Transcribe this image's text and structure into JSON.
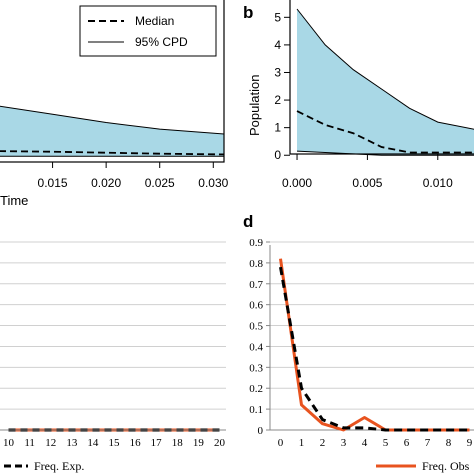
{
  "chart_data": [
    {
      "panel": "a",
      "type": "area",
      "panel_label": "",
      "xlabel": "Time",
      "ylabel": "",
      "x_ticks": [
        "0.015",
        "0.020",
        "0.025",
        "0.030"
      ],
      "xlim": [
        0.01,
        0.031
      ],
      "ylim": [
        0,
        6
      ],
      "legend": {
        "placement": "top-right",
        "entries": [
          {
            "label": "Median",
            "style": "dashed"
          },
          {
            "label": "95% CPD",
            "style": "solid"
          }
        ]
      },
      "band_color": "#a9d8e6",
      "series": [
        {
          "name": "Median",
          "x": [
            0.01,
            0.015,
            0.02,
            0.025,
            0.031
          ],
          "values": [
            0.18,
            0.16,
            0.13,
            0.1,
            0.08
          ]
        },
        {
          "name": "95% CPD",
          "x": [
            0.01,
            0.015,
            0.02,
            0.025,
            0.031
          ],
          "upper": [
            1.55,
            1.3,
            1.05,
            0.85,
            0.7
          ],
          "lower": [
            0.02,
            0.02,
            0.02,
            0.02,
            0.02
          ]
        }
      ]
    },
    {
      "panel": "b",
      "type": "area",
      "panel_label": "b",
      "xlabel": "",
      "ylabel": "Population",
      "x_ticks": [
        "0.000",
        "0.005",
        "0.010"
      ],
      "y_ticks": [
        "0",
        "1",
        "2",
        "3",
        "4",
        "5"
      ],
      "xlim": [
        -0.0005,
        0.013
      ],
      "ylim": [
        -0.1,
        5.7
      ],
      "band_color": "#a9d8e6",
      "series": [
        {
          "name": "Median",
          "x": [
            0.0,
            0.002,
            0.004,
            0.006,
            0.008,
            0.01,
            0.013
          ],
          "values": [
            1.6,
            1.1,
            0.8,
            0.3,
            0.1,
            0.1,
            0.1
          ]
        },
        {
          "name": "95% CPD",
          "x": [
            0.0,
            0.002,
            0.004,
            0.006,
            0.008,
            0.01,
            0.013
          ],
          "upper": [
            5.3,
            4.0,
            3.1,
            2.4,
            1.7,
            1.2,
            0.9
          ],
          "lower": [
            0.15,
            0.1,
            0.05,
            0.0,
            0.0,
            0.0,
            0.0
          ]
        }
      ]
    },
    {
      "panel": "c",
      "type": "line",
      "panel_label": "",
      "x_ticks": [
        "10",
        "11",
        "12",
        "13",
        "14",
        "15",
        "16",
        "17",
        "18",
        "19",
        "20"
      ],
      "xlim": [
        9.5,
        20.5
      ],
      "ylim": [
        0,
        0.9
      ],
      "legend": {
        "placement": "bottom",
        "entries": [
          {
            "label": "Freq. Exp.",
            "style": "dashed"
          }
        ]
      },
      "series": [
        {
          "name": "Freq. Obs.",
          "x": [
            10,
            11,
            12,
            13,
            14,
            15,
            16,
            17,
            18,
            19,
            20
          ],
          "values": [
            0,
            0,
            0,
            0,
            0,
            0,
            0,
            0,
            0,
            0,
            0
          ],
          "color": "#e8531f"
        },
        {
          "name": "Freq. Exp.",
          "x": [
            10,
            11,
            12,
            13,
            14,
            15,
            16,
            17,
            18,
            19,
            20
          ],
          "values": [
            0,
            0,
            0,
            0,
            0,
            0,
            0,
            0,
            0,
            0,
            0
          ],
          "color": "#000000"
        }
      ]
    },
    {
      "panel": "d",
      "type": "line",
      "panel_label": "d",
      "x_ticks": [
        "0",
        "1",
        "2",
        "3",
        "4",
        "5",
        "6",
        "7",
        "8",
        "9"
      ],
      "y_ticks": [
        "0",
        "0.1",
        "0.2",
        "0.3",
        "0.4",
        "0.5",
        "0.6",
        "0.7",
        "0.8",
        "0.9"
      ],
      "xlim": [
        -0.5,
        9.5
      ],
      "ylim": [
        0,
        0.9
      ],
      "legend": {
        "placement": "bottom",
        "entries": [
          {
            "label": "Freq. Obs",
            "style": "solid"
          }
        ]
      },
      "series": [
        {
          "name": "Freq. Obs",
          "x": [
            0,
            1,
            2,
            3,
            4,
            5,
            6,
            7,
            8,
            9
          ],
          "values": [
            0.82,
            0.12,
            0.03,
            0.0,
            0.06,
            0.0,
            0.0,
            0.0,
            0.0,
            0.0
          ],
          "color": "#e8531f"
        },
        {
          "name": "Freq. Exp.",
          "x": [
            0,
            1,
            2,
            3,
            4,
            5,
            6,
            7,
            8,
            9
          ],
          "values": [
            0.78,
            0.2,
            0.05,
            0.01,
            0.01,
            0.0,
            0.0,
            0.0,
            0.0,
            0.0
          ],
          "color": "#000000"
        }
      ]
    }
  ]
}
